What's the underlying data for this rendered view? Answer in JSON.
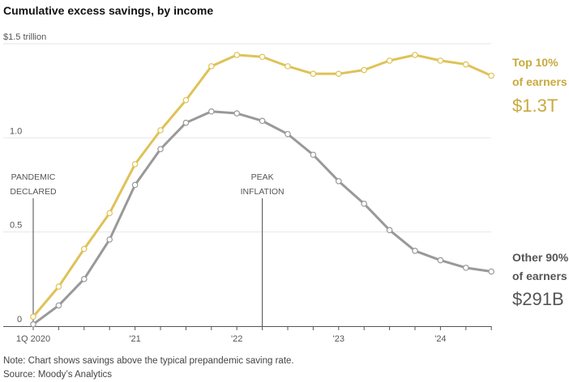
{
  "chart_data": {
    "type": "line",
    "title": "Cumulative excess savings, by income",
    "ylim": [
      0,
      1.5
    ],
    "yticks": [
      {
        "value": 0,
        "label": "0"
      },
      {
        "value": 0.5,
        "label": "0.5"
      },
      {
        "value": 1.0,
        "label": "1.0"
      },
      {
        "value": 1.5,
        "label": "$1.5 trillion"
      }
    ],
    "xticks": [
      {
        "index": 0,
        "label": "1Q 2020"
      },
      {
        "index": 4,
        "label": "'21"
      },
      {
        "index": 8,
        "label": "'22"
      },
      {
        "index": 12,
        "label": "'23"
      },
      {
        "index": 16,
        "label": "'24"
      }
    ],
    "x": [
      "1Q20",
      "2Q20",
      "3Q20",
      "4Q20",
      "1Q21",
      "2Q21",
      "3Q21",
      "4Q21",
      "1Q22",
      "2Q22",
      "3Q22",
      "4Q22",
      "1Q23",
      "2Q23",
      "3Q23",
      "4Q23",
      "1Q24",
      "2Q24",
      "3Q24"
    ],
    "grid": true,
    "series": [
      {
        "name": "Top 10% of earners",
        "label_line1": "Top 10%",
        "label_line2": "of earners",
        "end_label": "$1.3T",
        "color": "#dfc257",
        "label_color": "#c9a93c",
        "values": [
          0.05,
          0.21,
          0.41,
          0.6,
          0.86,
          1.04,
          1.2,
          1.38,
          1.44,
          1.43,
          1.38,
          1.34,
          1.34,
          1.36,
          1.41,
          1.44,
          1.41,
          1.39,
          1.33
        ]
      },
      {
        "name": "Other 90% of earners",
        "label_line1": "Other 90%",
        "label_line2": "of earners",
        "end_label": "$291B",
        "color": "#999999",
        "label_color": "#555555",
        "values": [
          0.01,
          0.11,
          0.25,
          0.46,
          0.75,
          0.94,
          1.08,
          1.14,
          1.13,
          1.09,
          1.02,
          0.91,
          0.77,
          0.65,
          0.51,
          0.4,
          0.35,
          0.31,
          0.29
        ]
      }
    ],
    "annotations": [
      {
        "index": 0,
        "line1": "PANDEMIC",
        "line2": "DECLARED"
      },
      {
        "index": 9,
        "line1": "PEAK",
        "line2": "INFLATION"
      }
    ]
  },
  "footer": {
    "note": "Note: Chart shows savings above the typical prepandemic saving rate.",
    "source": "Source: Moody’s Analytics"
  }
}
